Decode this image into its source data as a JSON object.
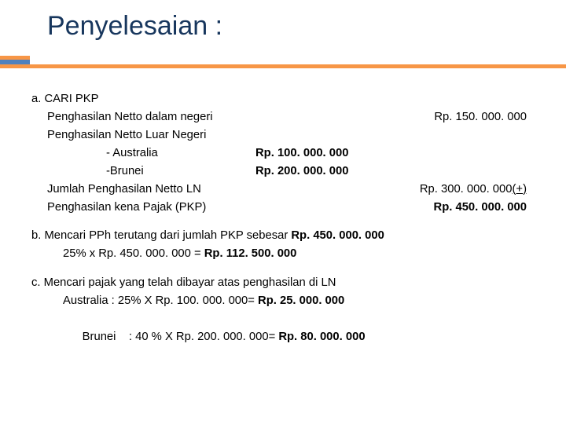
{
  "title": "Penyelesaian :",
  "accent_color": "#f79646",
  "title_color": "#17365d",
  "font_family": "Arial",
  "font_size_body": 14.8,
  "section_a": {
    "heading": "a. CARI PKP",
    "line1": {
      "label": "Penghasilan Netto dalam negeri",
      "value": "Rp. 150. 000. 000"
    },
    "line2": {
      "label": "Penghasilan Netto Luar Negeri"
    },
    "sub1": {
      "label": "- Australia",
      "value": "Rp. 100. 000. 000"
    },
    "sub2": {
      "label": "-Brunei",
      "value": "Rp. 200. 000. 000"
    },
    "line3": {
      "label": "Jumlah Penghasilan Netto LN",
      "value": "Rp. 300. 000. 000",
      "suffix": "(+)"
    },
    "line4": {
      "label": "Penghasilan kena Pajak (PKP)",
      "value": "Rp. 450. 000. 000"
    }
  },
  "section_b": {
    "heading_pre": "b. Mencari PPh terutang dari jumlah PKP sebesar ",
    "heading_bold": "Rp. 450. 000. 000",
    "calc_pre": "25% x Rp. 450. 000. 000 = ",
    "calc_bold": "Rp. 112. 500. 000"
  },
  "section_c": {
    "heading": "c. Mencari pajak yang telah dibayar atas penghasilan di LN",
    "row1_pre": "Australia : 25% X Rp. 100. 000. 000= ",
    "row1_bold": "Rp. 25. 000. 000",
    "row2_pre": "Brunei    : 40 % X Rp. 200. 000. 000= ",
    "row2_bold": "Rp. 80. 000. 000"
  }
}
